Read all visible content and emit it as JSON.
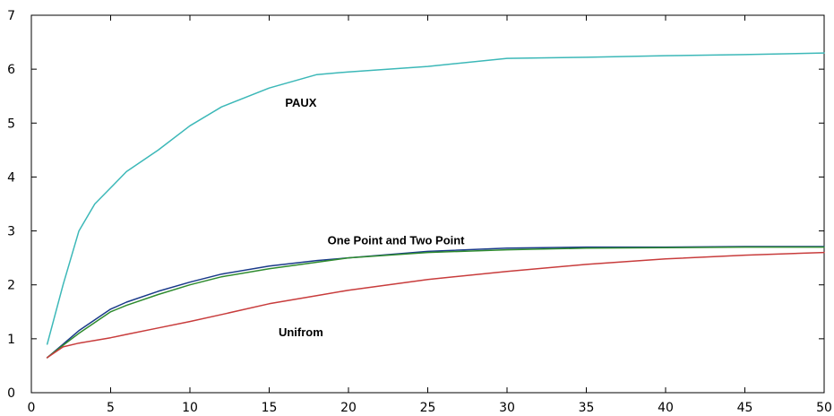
{
  "chart_data": {
    "type": "line",
    "title": "",
    "xlabel": "",
    "ylabel": "",
    "xlim": [
      0,
      50
    ],
    "ylim": [
      0,
      7
    ],
    "x_ticks": [
      0,
      5,
      10,
      15,
      20,
      25,
      30,
      35,
      40,
      45,
      50
    ],
    "y_ticks": [
      0,
      1,
      2,
      3,
      4,
      5,
      6,
      7
    ],
    "grid": false,
    "legend": "none",
    "x": [
      1,
      2,
      3,
      4,
      5,
      6,
      8,
      10,
      12,
      15,
      18,
      20,
      25,
      30,
      35,
      40,
      45,
      50
    ],
    "series": [
      {
        "color": "#3cb8b8",
        "values": [
          0.9,
          2.0,
          3.0,
          3.5,
          3.8,
          4.1,
          4.5,
          4.95,
          5.3,
          5.65,
          5.9,
          5.95,
          6.05,
          6.2,
          6.22,
          6.25,
          6.27,
          6.3
        ]
      },
      {
        "color": "#1a3a8a",
        "values": [
          0.65,
          0.9,
          1.15,
          1.35,
          1.55,
          1.68,
          1.88,
          2.05,
          2.2,
          2.35,
          2.45,
          2.5,
          2.62,
          2.68,
          2.7,
          2.7,
          2.71,
          2.71
        ]
      },
      {
        "color": "#2e8b2e",
        "values": [
          0.65,
          0.88,
          1.1,
          1.3,
          1.5,
          1.62,
          1.82,
          2.0,
          2.15,
          2.3,
          2.42,
          2.5,
          2.6,
          2.65,
          2.68,
          2.69,
          2.7,
          2.7
        ]
      },
      {
        "color": "#c83c3c",
        "values": [
          0.65,
          0.85,
          0.92,
          0.97,
          1.02,
          1.08,
          1.2,
          1.32,
          1.45,
          1.65,
          1.8,
          1.9,
          2.1,
          2.25,
          2.38,
          2.48,
          2.55,
          2.6
        ]
      }
    ],
    "annotations": [
      {
        "text": "PAUX",
        "x": 17,
        "y": 5.3
      },
      {
        "text": "One Point and Two Point",
        "x": 23,
        "y": 2.75
      },
      {
        "text": "Unifrom",
        "x": 17,
        "y": 1.05
      }
    ]
  }
}
